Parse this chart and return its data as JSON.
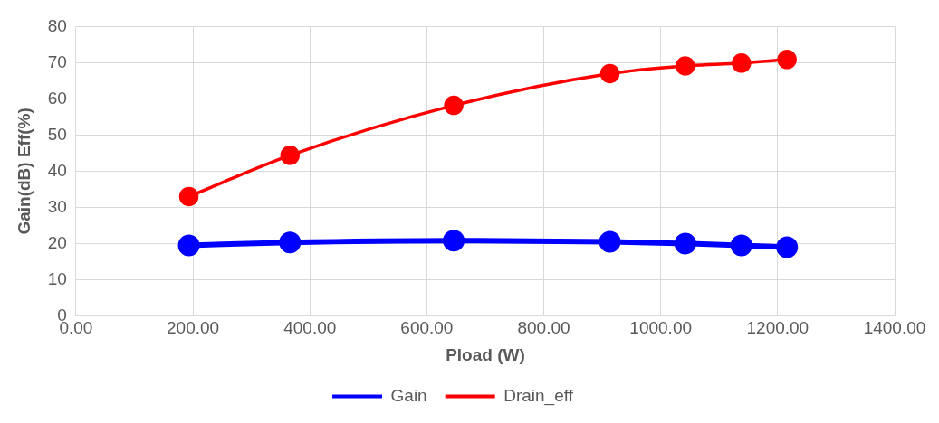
{
  "chart_data": {
    "type": "line",
    "xlabel": "Pload (W)",
    "ylabel": "Gain(dB) Eff(%)",
    "series": [
      {
        "name": "Gain",
        "color": "#0000ff",
        "x": [
          193,
          366,
          646,
          913,
          1042,
          1138,
          1216
        ],
        "values": [
          19.5,
          20.3,
          20.8,
          20.5,
          20,
          19.5,
          19
        ]
      },
      {
        "name": "Drain_eff",
        "color": "#ff0000",
        "x": [
          193,
          366,
          646,
          913,
          1042,
          1138,
          1216
        ],
        "values": [
          33,
          44.4,
          58.2,
          67,
          69.1,
          69.9,
          70.9
        ]
      }
    ],
    "xlim": [
      0,
      1400
    ],
    "xticks": [
      {
        "value": 0,
        "label": "0.00"
      },
      {
        "value": 200,
        "label": "200.00"
      },
      {
        "value": 400,
        "label": "400.00"
      },
      {
        "value": 600,
        "label": "600.00"
      },
      {
        "value": 800,
        "label": "800.00"
      },
      {
        "value": 1000,
        "label": "1000.00"
      },
      {
        "value": 1200,
        "label": "1200.00"
      },
      {
        "value": 1400,
        "label": "1400.00"
      }
    ],
    "ylim": [
      0,
      80
    ],
    "yticks": [
      0,
      10,
      20,
      30,
      40,
      50,
      60,
      70,
      80
    ],
    "grid": true,
    "legend": "bottom",
    "marker": "circle",
    "line_style": "solid"
  }
}
